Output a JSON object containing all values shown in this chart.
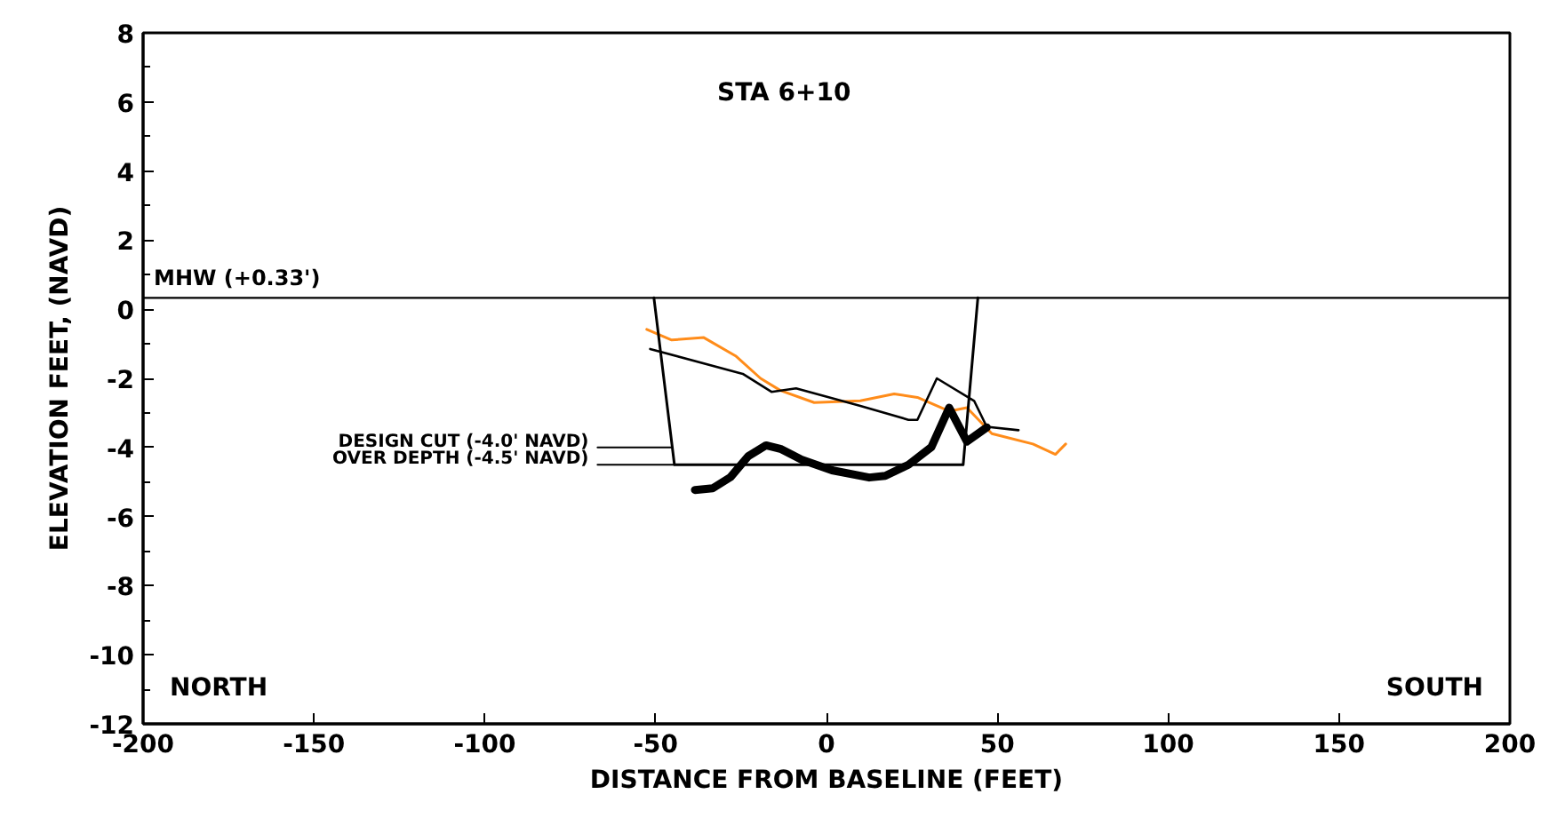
{
  "chart_data": {
    "type": "line",
    "title": "STA 6+10",
    "xlabel": "DISTANCE FROM BASELINE (FEET)",
    "ylabel": "ELEVATION FEET, (NAVD)",
    "xlim": [
      -200,
      200
    ],
    "ylim": [
      -12,
      8
    ],
    "xticks": [
      -200,
      -150,
      -100,
      -50,
      0,
      50,
      100,
      150,
      200
    ],
    "yticks": [
      -12,
      -10,
      -8,
      -6,
      -4,
      -2,
      0,
      2,
      4,
      6,
      8
    ],
    "grid": false,
    "ref_lines": [
      {
        "axis": "y",
        "value": 0.33,
        "label": "MHW (+0.33')",
        "color": "#000000"
      }
    ],
    "annotations": [
      "NORTH",
      "SOUTH",
      {
        "text": "DESIGN CUT (-4.0' NAVD)",
        "x": -67,
        "y": -4.0
      },
      {
        "text": "OVER DEPTH (-4.5' NAVD)",
        "x": -67,
        "y": -4.5
      }
    ],
    "series": [
      {
        "color": "#ff8c1a",
        "x": [
          -52.6,
          -45.3,
          -35.9,
          -26.6,
          -19.3,
          -13.5,
          -3.6,
          9.9,
          19.8,
          26.6,
          35.9,
          41.1,
          48.4,
          60.4,
          67,
          70
        ],
        "values": [
          -0.58,
          -0.89,
          -0.82,
          -1.35,
          -2.0,
          -2.35,
          -2.7,
          -2.65,
          -2.45,
          -2.55,
          -2.95,
          -2.85,
          -3.6,
          -3.9,
          -4.2,
          -3.9
        ]
      },
      {
        "color": "#000000",
        "x": [
          -51.6,
          -24.5,
          -16.1,
          -8.9,
          9.9,
          24,
          26.6,
          32.3,
          43.2,
          46.9,
          56.2
        ],
        "values": [
          -1.15,
          -1.87,
          -2.39,
          -2.29,
          -2.8,
          -3.2,
          -3.2,
          -2.0,
          -2.65,
          -3.4,
          -3.5
        ]
      },
      {
        "color": "#000000",
        "x": [
          -38.5,
          -33.3,
          -28.1,
          -22.9,
          -17.7,
          -13.5,
          -7.3,
          1.6,
          12.5,
          17.2,
          24,
          30.7,
          35.9,
          41.1,
          46.9
        ],
        "values": [
          -5.23,
          -5.18,
          -4.86,
          -4.25,
          -3.94,
          -4.04,
          -4.35,
          -4.66,
          -4.87,
          -4.82,
          -4.5,
          -3.99,
          -2.85,
          -3.83,
          -3.42
        ]
      },
      {
        "color": "#000000",
        "x": [
          -50.5,
          -44.5,
          40,
          44.3
        ],
        "values": [
          0.33,
          -4.5,
          -4.5,
          0.33
        ]
      },
      {
        "color": "#000000",
        "x": [
          -67,
          -45
        ],
        "values": [
          -4.0,
          -4.0
        ]
      },
      {
        "color": "#000000",
        "x": [
          -67,
          -44.5
        ],
        "values": [
          -4.5,
          -4.5
        ]
      }
    ]
  }
}
